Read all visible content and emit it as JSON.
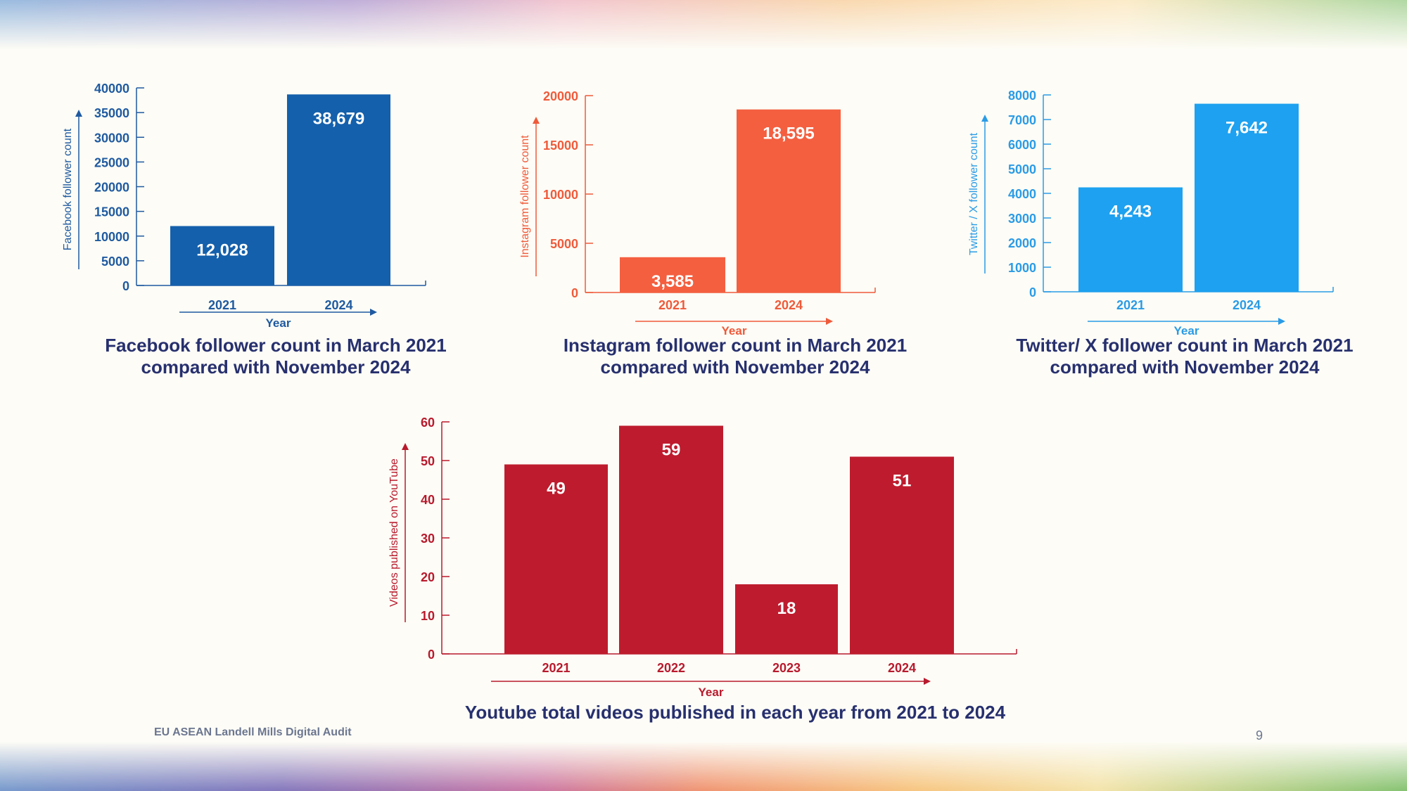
{
  "footer": {
    "text": "EU ASEAN Landell Mills Digital Audit",
    "page_number": "9"
  },
  "chart_data": [
    {
      "type": "bar",
      "title": "Facebook follower count in March 2021 compared with November 2024",
      "title_lines": [
        "Facebook follower count in March 2021",
        "compared with November 2024"
      ],
      "xlabel": "Year",
      "ylabel": "Facebook follower count",
      "categories": [
        "2021",
        "2024"
      ],
      "values": [
        12028,
        38679
      ],
      "value_labels": [
        "12,028",
        "38,679"
      ],
      "ylim": [
        0,
        40000
      ],
      "yticks": [
        "0",
        "5000",
        "10000",
        "15000",
        "20000",
        "25000",
        "30000",
        "35000",
        "40000"
      ],
      "color": "#1460ac",
      "text_color": "#1f5aa0"
    },
    {
      "type": "bar",
      "title": "Instagram follower count in March 2021 compared with November 2024",
      "title_lines": [
        "Instagram follower count in March 2021",
        "compared with November 2024"
      ],
      "xlabel": "Year",
      "ylabel": "Instagram follower count",
      "categories": [
        "2021",
        "2024"
      ],
      "values": [
        3585,
        18595
      ],
      "value_labels": [
        "3,585",
        "18,595"
      ],
      "ylim": [
        0,
        20000
      ],
      "yticks": [
        "0",
        "5000",
        "10000",
        "15000",
        "20000"
      ],
      "color": "#f45f3f",
      "text_color": "#ef5a3a"
    },
    {
      "type": "bar",
      "title": "Twitter/ X follower count in March 2021 compared with November 2024",
      "title_lines": [
        "Twitter/ X follower count in March 2021",
        "compared with November 2024"
      ],
      "xlabel": "Year",
      "ylabel": "Twitter / X follower count",
      "categories": [
        "2021",
        "2024"
      ],
      "values": [
        4243,
        7642
      ],
      "value_labels": [
        "4,243",
        "7,642"
      ],
      "ylim": [
        0,
        8000
      ],
      "yticks": [
        "0",
        "1000",
        "2000",
        "3000",
        "4000",
        "5000",
        "6000",
        "7000",
        "8000"
      ],
      "color": "#1da1f0",
      "text_color": "#2a9be6"
    },
    {
      "type": "bar",
      "title": "Youtube total videos published in each year from 2021 to 2024",
      "title_lines": [
        "Youtube total videos published in each year from 2021 to 2024"
      ],
      "xlabel": "Year",
      "ylabel": "Videos published on YouTube",
      "categories": [
        "2021",
        "2022",
        "2023",
        "2024"
      ],
      "values": [
        49,
        59,
        18,
        51
      ],
      "value_labels": [
        "49",
        "59",
        "18",
        "51"
      ],
      "ylim": [
        0,
        60
      ],
      "yticks": [
        "0",
        "10",
        "20",
        "30",
        "40",
        "50",
        "60"
      ],
      "color": "#be1c2e",
      "text_color": "#b81a2d"
    }
  ]
}
